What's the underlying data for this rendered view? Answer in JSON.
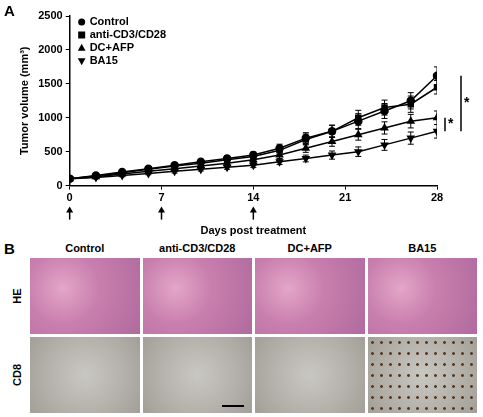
{
  "chart_data": {
    "type": "line",
    "panel": "A",
    "x_label": "Days post treatment",
    "y_label": "Tumor volume (mm³)",
    "x": [
      0,
      2,
      4,
      6,
      8,
      10,
      12,
      14,
      16,
      18,
      20,
      22,
      24,
      26,
      28
    ],
    "xlim": [
      0,
      28
    ],
    "xticks": [
      0,
      7,
      14,
      21,
      28
    ],
    "ylim": [
      0,
      2500
    ],
    "yticks": [
      0,
      500,
      1000,
      1500,
      2000,
      2500
    ],
    "grid": false,
    "legend": "top-left",
    "treatment_days": [
      0,
      7,
      14
    ],
    "series": [
      {
        "name": "Control",
        "color": "#000000",
        "marker": "circle",
        "values": [
          100,
          150,
          200,
          250,
          300,
          350,
          400,
          450,
          550,
          700,
          800,
          950,
          1100,
          1250,
          1620
        ],
        "errors": [
          10,
          20,
          25,
          30,
          30,
          35,
          40,
          45,
          60,
          80,
          90,
          110,
          110,
          120,
          130
        ]
      },
      {
        "name": "anti-CD3/CD28",
        "color": "#000000",
        "marker": "square",
        "values": [
          100,
          140,
          190,
          240,
          290,
          330,
          380,
          430,
          520,
          680,
          800,
          1000,
          1150,
          1200,
          1450
        ],
        "errors": [
          10,
          20,
          25,
          30,
          30,
          35,
          40,
          45,
          60,
          80,
          90,
          110,
          110,
          120,
          100
        ]
      },
      {
        "name": "DC+AFP",
        "color": "#000000",
        "marker": "triangle",
        "values": [
          100,
          130,
          170,
          210,
          250,
          290,
          330,
          380,
          450,
          550,
          650,
          750,
          850,
          950,
          1000
        ],
        "errors": [
          10,
          15,
          20,
          25,
          25,
          30,
          35,
          40,
          50,
          60,
          70,
          80,
          90,
          100,
          100
        ]
      },
      {
        "name": "BA15",
        "color": "#000000",
        "marker": "triangle-down",
        "values": [
          100,
          120,
          150,
          180,
          210,
          240,
          270,
          300,
          350,
          400,
          450,
          500,
          600,
          700,
          800
        ],
        "errors": [
          10,
          15,
          20,
          20,
          25,
          25,
          30,
          35,
          40,
          50,
          60,
          70,
          80,
          90,
          100
        ]
      }
    ],
    "annotations": [
      {
        "text": "*",
        "from": "Control",
        "to": "BA15"
      },
      {
        "text": "*",
        "from": "DC+AFP",
        "to": "BA15"
      }
    ]
  },
  "panel_b": {
    "panel": "B",
    "columns": [
      "Control",
      "anti-CD3/CD28",
      "DC+AFP",
      "BA15"
    ],
    "rows": [
      "HE",
      "CD8"
    ]
  }
}
